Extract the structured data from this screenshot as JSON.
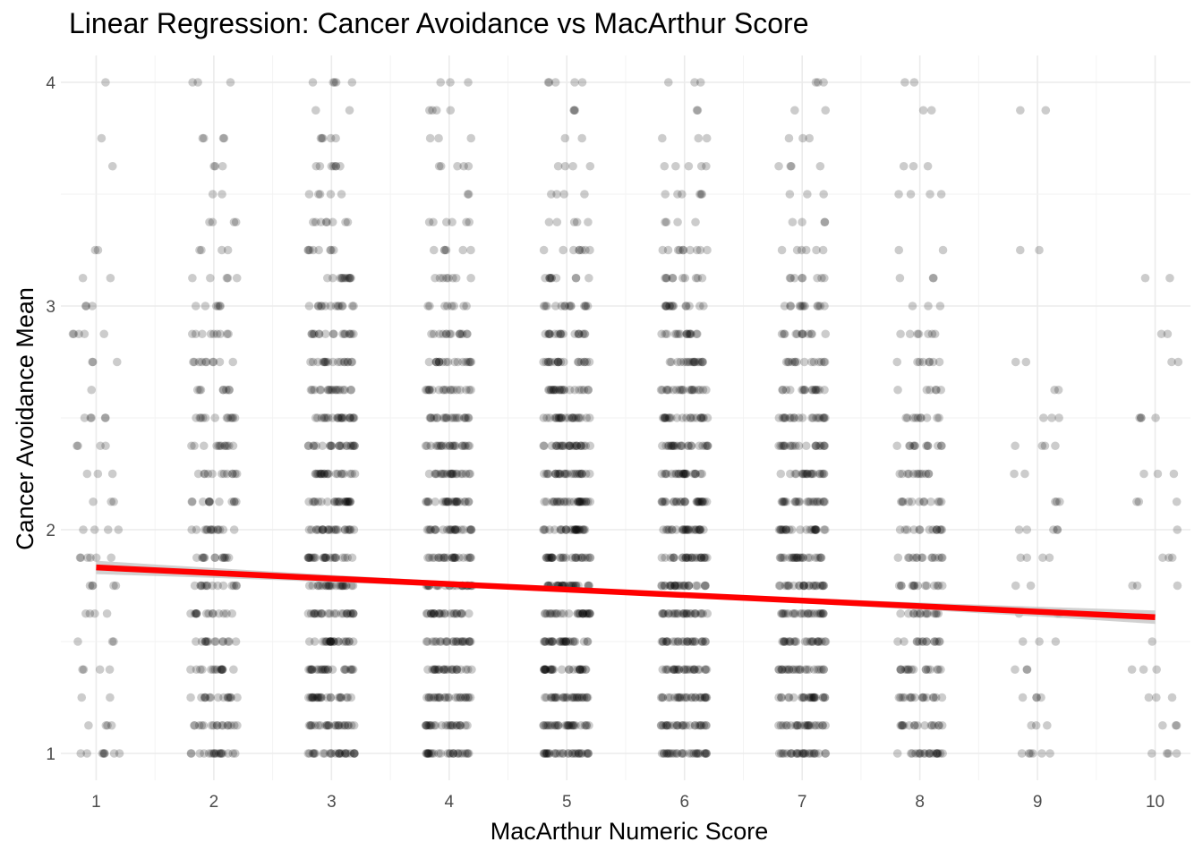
{
  "chart_data": {
    "type": "scatter",
    "title": "Linear Regression: Cancer Avoidance vs MacArthur Score",
    "xlabel": "MacArthur Numeric Score",
    "ylabel": "Cancer Avoidance Mean",
    "xlim": [
      0.7,
      10.3
    ],
    "ylim": [
      0.88,
      4.12
    ],
    "x_ticks": [
      1,
      2,
      3,
      4,
      5,
      6,
      7,
      8,
      9,
      10
    ],
    "y_ticks": [
      1,
      2,
      3,
      4
    ],
    "grid": true,
    "point_color": "#000000",
    "point_opacity": 0.2,
    "jitter_width": 0.2,
    "y_levels": [
      1,
      1.125,
      1.25,
      1.375,
      1.5,
      1.625,
      1.75,
      1.875,
      2,
      2.125,
      2.25,
      2.375,
      2.5,
      2.625,
      2.75,
      2.875,
      3,
      3.125,
      3.25,
      3.375,
      3.5,
      3.625,
      3.75,
      3.875,
      4
    ],
    "point_counts_by_x": [
      {
        "x": 1,
        "counts": [
          8,
          4,
          2,
          4,
          3,
          4,
          5,
          6,
          4,
          3,
          3,
          4,
          5,
          1,
          3,
          5,
          3,
          2,
          2,
          0,
          0,
          1,
          1,
          0,
          1
        ]
      },
      {
        "x": 2,
        "counts": [
          18,
          16,
          15,
          15,
          14,
          14,
          14,
          13,
          14,
          12,
          12,
          12,
          12,
          8,
          10,
          9,
          6,
          5,
          4,
          4,
          2,
          3,
          4,
          0,
          3
        ]
      },
      {
        "x": 3,
        "counts": [
          26,
          24,
          24,
          24,
          24,
          24,
          24,
          24,
          24,
          24,
          22,
          22,
          22,
          18,
          18,
          16,
          14,
          12,
          8,
          8,
          5,
          7,
          5,
          2,
          5
        ]
      },
      {
        "x": 4,
        "counts": [
          26,
          24,
          24,
          24,
          24,
          24,
          24,
          24,
          24,
          24,
          22,
          22,
          20,
          18,
          18,
          14,
          8,
          8,
          6,
          6,
          2,
          5,
          3,
          4,
          3
        ]
      },
      {
        "x": 5,
        "counts": [
          30,
          28,
          28,
          28,
          28,
          28,
          28,
          28,
          28,
          28,
          26,
          26,
          24,
          22,
          20,
          18,
          14,
          10,
          8,
          5,
          4,
          4,
          2,
          3,
          5
        ]
      },
      {
        "x": 6,
        "counts": [
          28,
          26,
          26,
          26,
          26,
          26,
          26,
          26,
          26,
          26,
          24,
          24,
          22,
          20,
          18,
          16,
          14,
          10,
          10,
          4,
          6,
          5,
          3,
          2,
          3
        ]
      },
      {
        "x": 7,
        "counts": [
          26,
          24,
          24,
          24,
          24,
          24,
          24,
          24,
          24,
          22,
          20,
          20,
          20,
          16,
          14,
          12,
          12,
          8,
          6,
          4,
          3,
          4,
          3,
          2,
          3
        ]
      },
      {
        "x": 8,
        "counts": [
          20,
          16,
          16,
          16,
          14,
          14,
          14,
          14,
          14,
          12,
          12,
          12,
          10,
          6,
          8,
          7,
          3,
          3,
          2,
          0,
          4,
          3,
          0,
          2,
          2
        ]
      },
      {
        "x": 9,
        "counts": [
          6,
          3,
          4,
          3,
          3,
          3,
          2,
          4,
          5,
          3,
          2,
          4,
          3,
          2,
          2,
          0,
          0,
          0,
          2,
          0,
          0,
          0,
          0,
          2,
          0
        ]
      },
      {
        "x": 10,
        "counts": [
          4,
          3,
          3,
          3,
          1,
          0,
          3,
          3,
          1,
          3,
          3,
          0,
          4,
          0,
          2,
          2,
          0,
          2,
          0,
          0,
          0,
          0,
          0,
          0,
          0
        ]
      }
    ],
    "regression": {
      "intercept": 1.856,
      "slope": -0.0247,
      "x_range": [
        1,
        10
      ],
      "color": "#ff0000",
      "se_band_halfwidth_ends": 0.03,
      "se_band_halfwidth_mid": 0.01,
      "se_band_color": "#bdbdbd"
    }
  }
}
